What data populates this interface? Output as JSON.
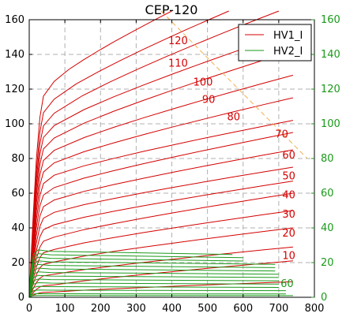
{
  "chart_data": {
    "type": "line",
    "title": "CEP-120",
    "xlim": [
      0,
      800
    ],
    "ylim": [
      0,
      160
    ],
    "y2lim": [
      0,
      160
    ],
    "x_ticks": [
      0,
      100,
      200,
      300,
      400,
      500,
      600,
      700,
      800
    ],
    "y_ticks": [
      0,
      20,
      40,
      60,
      80,
      100,
      120,
      140,
      160
    ],
    "y2_ticks": [
      0,
      20,
      40,
      60,
      80,
      100,
      120,
      140,
      160
    ],
    "grid": true,
    "legend_position": "top-right",
    "colors": {
      "hv1": "#d40000",
      "hv2": "#1a9a1a",
      "dashed": "#f0b050",
      "right_axis": "#1a9a1a"
    },
    "series": [
      {
        "name": "HV1_I",
        "color": "#d40000"
      },
      {
        "name": "HV2_I",
        "color": "#1a9a1a"
      }
    ],
    "hv1_curves": [
      {
        "label": "120",
        "knee_y": 122,
        "end_x": 400,
        "end_y": 165
      },
      {
        "label": "110",
        "knee_y": 112,
        "end_x": 560,
        "end_y": 165
      },
      {
        "label": "100",
        "knee_y": 104,
        "end_x": 700,
        "end_y": 165
      },
      {
        "label": "90",
        "knee_y": 97,
        "end_x": 740,
        "end_y": 153
      },
      {
        "label": "80",
        "knee_y": 90,
        "end_x": 740,
        "end_y": 142
      },
      {
        "label": "",
        "knee_y": 83,
        "end_x": 740,
        "end_y": 128
      },
      {
        "label": "",
        "knee_y": 76,
        "end_x": 740,
        "end_y": 115
      },
      {
        "label": "70",
        "knee_y": 69,
        "end_x": 740,
        "end_y": 102
      },
      {
        "label": "",
        "knee_y": 62,
        "end_x": 740,
        "end_y": 95
      },
      {
        "label": "60",
        "knee_y": 55,
        "end_x": 740,
        "end_y": 85
      },
      {
        "label": "50",
        "knee_y": 48,
        "end_x": 740,
        "end_y": 75
      },
      {
        "label": "",
        "knee_y": 41,
        "end_x": 740,
        "end_y": 67
      },
      {
        "label": "40",
        "knee_y": 34,
        "end_x": 740,
        "end_y": 60
      },
      {
        "label": "30",
        "knee_y": 27,
        "end_x": 740,
        "end_y": 50
      },
      {
        "label": "20",
        "knee_y": 20,
        "end_x": 740,
        "end_y": 40
      },
      {
        "label": "10",
        "knee_y": 13,
        "end_x": 740,
        "end_y": 29
      },
      {
        "label": "",
        "knee_y": 7,
        "end_x": 740,
        "end_y": 21
      },
      {
        "label": "",
        "knee_y": 3,
        "end_x": 740,
        "end_y": 9
      }
    ],
    "hv1_labels": [
      {
        "text": "120",
        "x": 390,
        "y": 146
      },
      {
        "text": "110",
        "x": 390,
        "y": 133
      },
      {
        "text": "100",
        "x": 460,
        "y": 122
      },
      {
        "text": "90",
        "x": 485,
        "y": 112
      },
      {
        "text": "80",
        "x": 555,
        "y": 102
      },
      {
        "text": "70",
        "x": 690,
        "y": 92
      },
      {
        "text": "60",
        "x": 710,
        "y": 80
      },
      {
        "text": "50",
        "x": 710,
        "y": 68
      },
      {
        "text": "40",
        "x": 710,
        "y": 57
      },
      {
        "text": "30",
        "x": 710,
        "y": 46
      },
      {
        "text": "20",
        "x": 710,
        "y": 35
      },
      {
        "text": "10",
        "x": 710,
        "y": 22
      }
    ],
    "hv2_curves": [
      {
        "plateau": 26,
        "end_x": 570
      },
      {
        "plateau": 24,
        "end_x": 600
      },
      {
        "plateau": 22,
        "end_x": 600
      },
      {
        "plateau": 20,
        "end_x": 690
      },
      {
        "plateau": 18,
        "end_x": 690
      },
      {
        "plateau": 16,
        "end_x": 690
      },
      {
        "plateau": 14,
        "end_x": 700
      },
      {
        "plateau": 12,
        "end_x": 700
      },
      {
        "plateau": 10,
        "end_x": 700
      },
      {
        "plateau": 8,
        "end_x": 700
      },
      {
        "plateau": 6,
        "end_x": 700
      },
      {
        "plateau": 4,
        "end_x": 720
      },
      {
        "plateau": 2,
        "end_x": 720
      },
      {
        "plateau": 1,
        "end_x": 740
      }
    ],
    "hv2_labels": [
      {
        "text": "60",
        "x": 705,
        "y": 6
      }
    ],
    "dashed_line": {
      "x": [
        370,
        780
      ],
      "y": [
        165,
        80
      ]
    }
  }
}
